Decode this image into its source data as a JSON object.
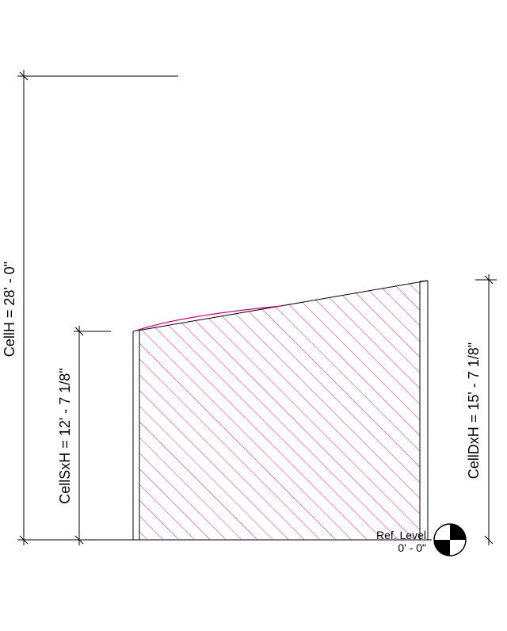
{
  "dimensions": {
    "cell_h": "CellH = 28' - 0\"",
    "cell_sx_h": "CellSxH = 12' - 7 1/8\"",
    "cell_dx_h": "CellDxH = 15' - 7 1/8\""
  },
  "level": {
    "name": "Ref. Level",
    "elevation": "0' - 0\""
  },
  "colors": {
    "hatch": "#cc0080",
    "line": "#000000",
    "background": "#ffffff"
  }
}
